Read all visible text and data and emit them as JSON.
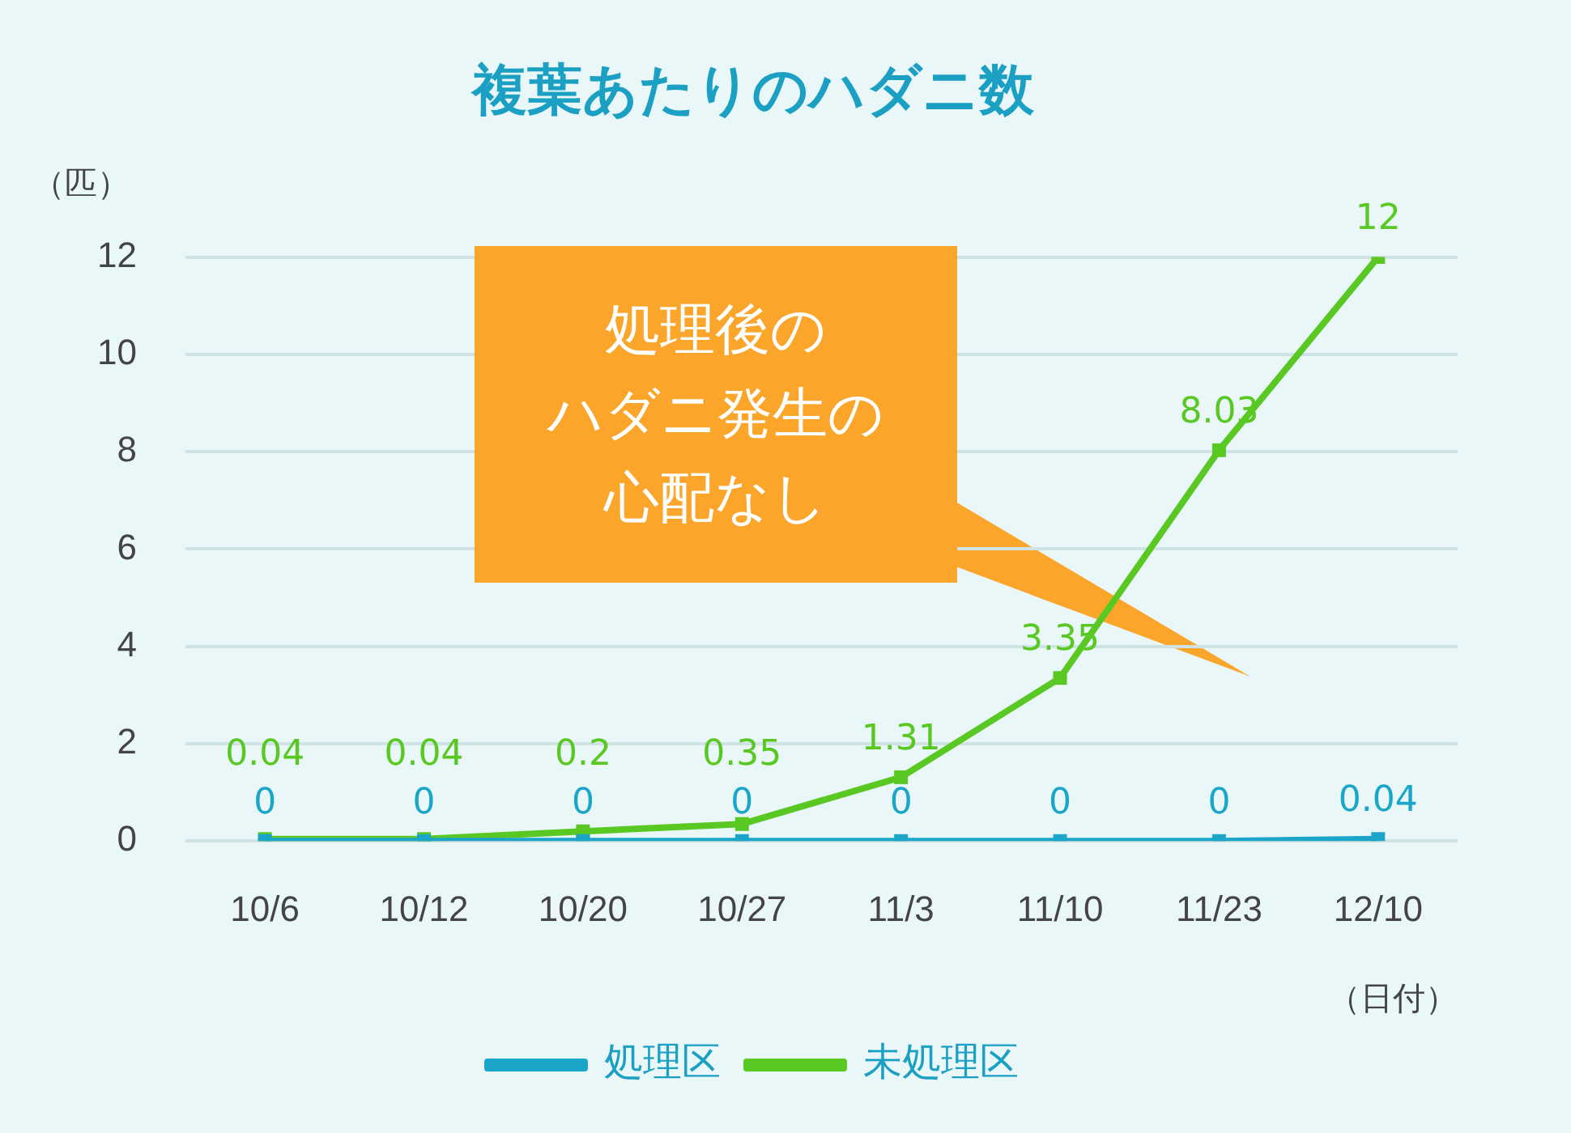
{
  "chart_data": {
    "type": "line",
    "title": "複葉あたりのハダニ数",
    "ylabel": "（匹）",
    "xlabel": "（日付）",
    "categories": [
      "10/6",
      "10/12",
      "10/20",
      "10/27",
      "11/3",
      "11/10",
      "11/23",
      "12/10"
    ],
    "series": [
      {
        "name": "処理区",
        "color": "#1ba6c9",
        "values": [
          0,
          0,
          0,
          0,
          0,
          0,
          0,
          0.04
        ]
      },
      {
        "name": "未処理区",
        "color": "#5ac823",
        "values": [
          0.04,
          0.04,
          0.2,
          0.35,
          1.31,
          3.35,
          8.03,
          12
        ]
      }
    ],
    "ylim": [
      0,
      12
    ],
    "yticks": [
      0,
      2,
      4,
      6,
      8,
      10,
      12
    ],
    "grid": "y",
    "legend": "bottom",
    "marker": "square",
    "line_style": "solid",
    "data_labels": true,
    "annotations": [
      "処理後の",
      "ハダニ発生の",
      "心配なし"
    ]
  }
}
